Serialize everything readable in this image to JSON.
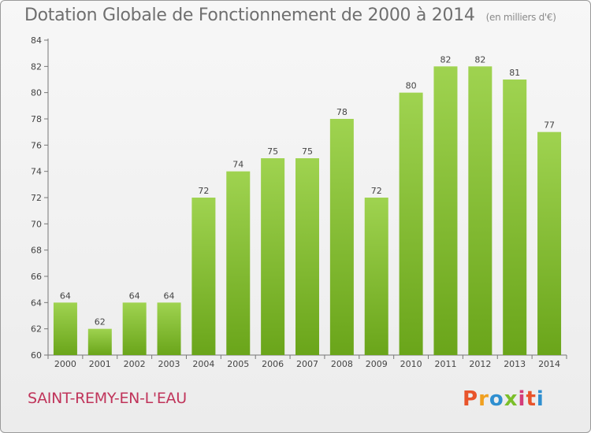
{
  "title": "Dotation Globale de Fonctionnement de 2000 à 2014",
  "unit": "(en milliers d'€)",
  "commune": "SAINT-REMY-EN-L'EAU",
  "logo": {
    "text": "Proxiti",
    "colors": [
      "#e8542b",
      "#f0a020",
      "#2f8fd0",
      "#7bbf2a",
      "#d43c7a",
      "#e8542b",
      "#2f8fd0"
    ]
  },
  "colors": {
    "bar_top": "#9fd350",
    "bar_bottom": "#6aa51a",
    "commune": "#c0345a"
  },
  "chart_data": {
    "type": "bar",
    "categories": [
      "2000",
      "2001",
      "2002",
      "2003",
      "2004",
      "2005",
      "2006",
      "2007",
      "2008",
      "2009",
      "2010",
      "2011",
      "2012",
      "2013",
      "2014"
    ],
    "values": [
      64,
      62,
      64,
      64,
      72,
      74,
      75,
      75,
      78,
      72,
      80,
      82,
      82,
      81,
      77
    ],
    "data_labels": [
      "64",
      "62",
      "64",
      "64",
      "72",
      "74",
      "75",
      "75",
      "78",
      "72",
      "80",
      "82",
      "82",
      "81",
      "77"
    ],
    "yticks": [
      "60",
      "62",
      "64",
      "66",
      "68",
      "70",
      "72",
      "74",
      "76",
      "78",
      "80",
      "82",
      "84"
    ],
    "ylim": [
      60,
      84
    ],
    "grid": false
  }
}
